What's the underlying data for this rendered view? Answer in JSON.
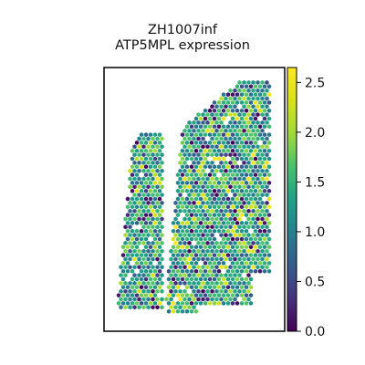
{
  "chart_data": {
    "type": "scatter",
    "title_line1": "ZH1007inf",
    "title_line2": "ATP5MPL expression",
    "xlabel": "",
    "ylabel": "",
    "marker": "hexagon",
    "colormap": "viridis",
    "colorbar": {
      "min": 0.0,
      "max": 2.65,
      "ticks": [
        0.0,
        0.5,
        1.0,
        1.5,
        2.0,
        2.5
      ],
      "tick_labels": [
        "0.0",
        "0.5",
        "1.0",
        "1.5",
        "2.0",
        "2.5"
      ]
    },
    "grid": false,
    "legend": "none",
    "colors": {
      "frame": "#000000",
      "viridis_low": "#440154",
      "viridis_mid": "#21918c",
      "viridis_high": "#fde725"
    },
    "tissue_regions": {
      "left_strip": {
        "y": [
          145,
          340
        ],
        "x_left_top": 146,
        "x_left_bottom": 128,
        "x_right": 178
      },
      "right_block": {
        "y": [
          88,
          345
        ],
        "x_left_top": 205,
        "x_left_bottom": 180,
        "x_right_top": 295,
        "x_right_bottom": 298
      }
    }
  }
}
